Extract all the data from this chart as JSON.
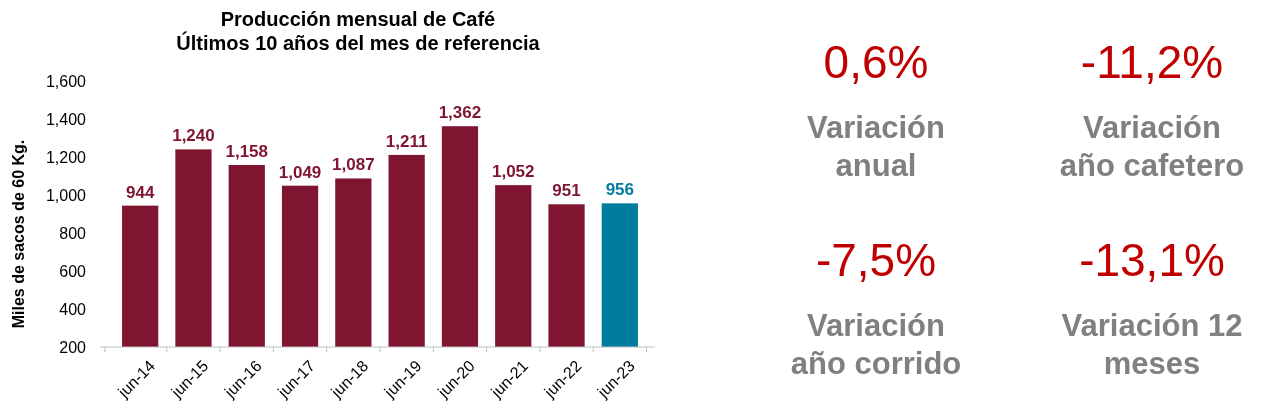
{
  "chart_data": [
    {
      "type": "bar",
      "title": "Producción mensual de Café\nÚltimos 10 años del mes de referencia",
      "ylabel": "Miles de sacos de 60 Kg.",
      "categories": [
        "jun-14",
        "jun-15",
        "jun-16",
        "jun-17",
        "jun-18",
        "jun-19",
        "jun-20",
        "jun-21",
        "jun-22",
        "jun-23"
      ],
      "values": [
        944,
        1240,
        1158,
        1049,
        1087,
        1211,
        1362,
        1052,
        951,
        956
      ],
      "colors": [
        "#7f1530",
        "#7f1530",
        "#7f1530",
        "#7f1530",
        "#7f1530",
        "#7f1530",
        "#7f1530",
        "#7f1530",
        "#7f1530",
        "#007c9e"
      ],
      "ylim": [
        200,
        1600
      ],
      "yticks": [
        {
          "value": 200,
          "label": "200"
        },
        {
          "value": 400,
          "label": "400"
        },
        {
          "value": 600,
          "label": "600"
        },
        {
          "value": 800,
          "label": "800"
        },
        {
          "value": 1000,
          "label": "1,000"
        },
        {
          "value": 1200,
          "label": "1,200"
        },
        {
          "value": 1400,
          "label": "1,400"
        },
        {
          "value": 1600,
          "label": "1,600"
        }
      ],
      "value_labels": [
        "944",
        "1,240",
        "1,158",
        "1,049",
        "1,087",
        "1,211",
        "1,362",
        "1,052",
        "951",
        "956"
      ],
      "grid": false
    },
    {
      "type": "other",
      "annotations": [
        "0,6%",
        "Variación anual",
        "-11,2%",
        "Variación año cafetero",
        "-7,5%",
        "Variación año corrido",
        "-13,1%",
        "Variación 12 meses"
      ]
    }
  ]
}
